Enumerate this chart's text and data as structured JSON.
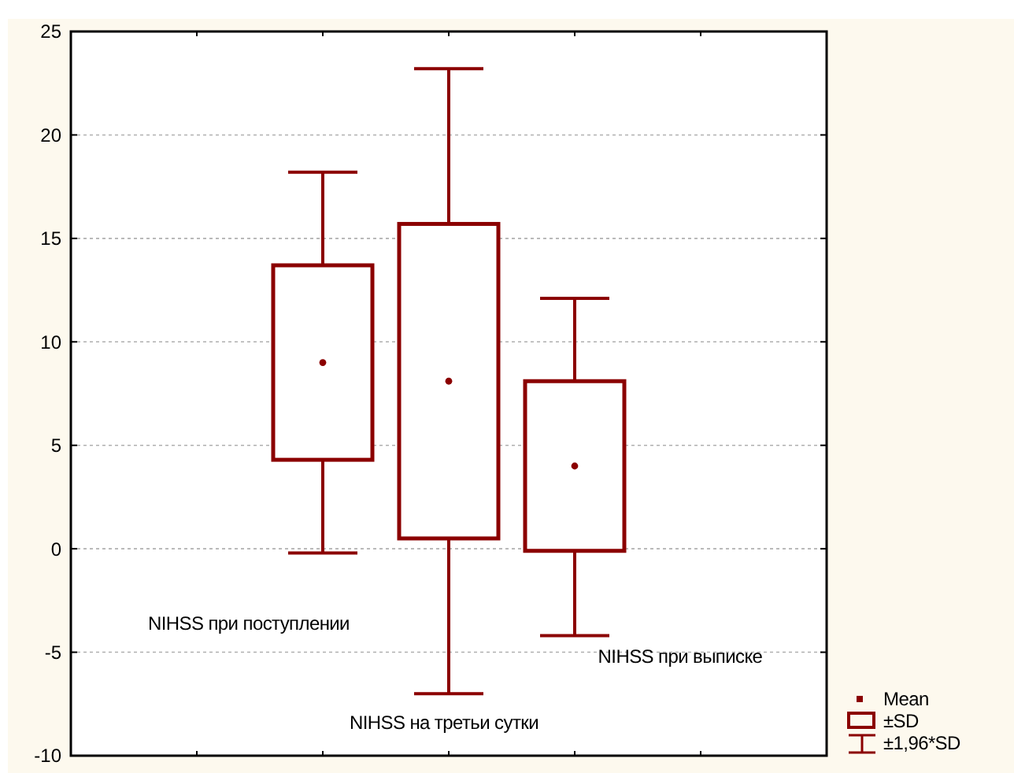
{
  "chart_data": {
    "type": "box",
    "categories": [
      null,
      null,
      null,
      null,
      null
    ],
    "boxes": [
      null,
      {
        "low": -0.2,
        "q1": 4.3,
        "median": 9.0,
        "q3": 13.7,
        "high": 18.2
      },
      {
        "low": -7.0,
        "q1": 0.5,
        "median": 8.1,
        "q3": 15.7,
        "high": 23.2
      },
      {
        "low": -4.2,
        "q1": -0.1,
        "median": 4.0,
        "q3": 8.1,
        "high": 12.1
      },
      null
    ],
    "color": "#8b0000",
    "ylim": [
      -10,
      25
    ],
    "yticks": [
      -10,
      -5,
      0,
      5,
      10,
      15,
      20,
      25
    ],
    "grid": "y",
    "annotations": [
      "NIHSS  при поступлении",
      "NIHSS  на третьи сутки",
      "NIHSS  при выписке",
      "Mean",
      "±SD",
      "±1,96*SD"
    ]
  }
}
